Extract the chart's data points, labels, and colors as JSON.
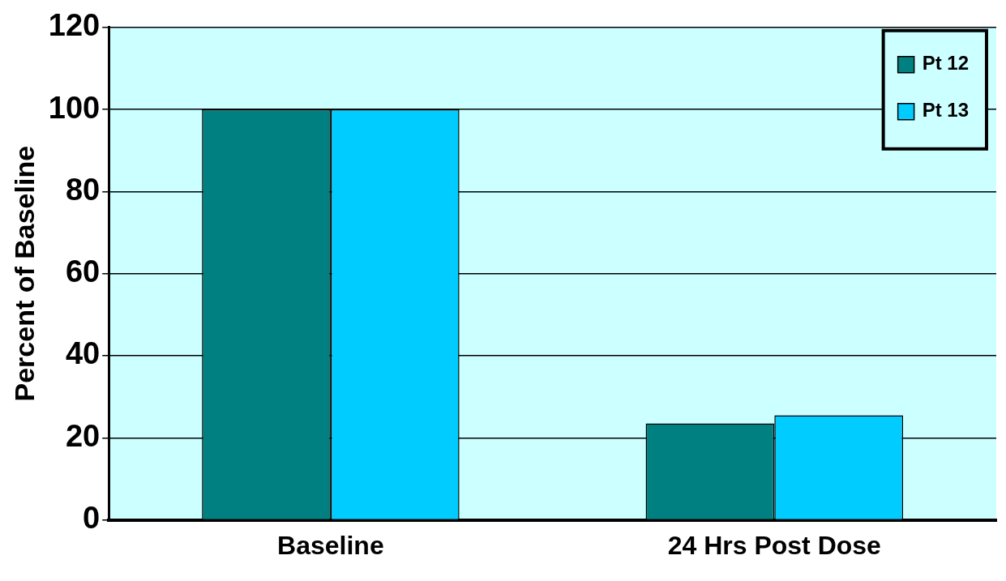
{
  "chart_data": {
    "type": "bar",
    "ylabel": "Percent of Baseline",
    "categories": [
      "Baseline",
      "24 Hrs Post Dose"
    ],
    "series": [
      {
        "name": "Pt 12",
        "color": "#008080",
        "values": [
          100,
          23.5
        ]
      },
      {
        "name": "Pt 13",
        "color": "#00ccff",
        "values": [
          100,
          25.5
        ]
      }
    ],
    "ylim": [
      0,
      120
    ],
    "yticks": [
      0,
      20,
      40,
      60,
      80,
      100,
      120
    ],
    "grid": "y",
    "legend": "top right"
  }
}
